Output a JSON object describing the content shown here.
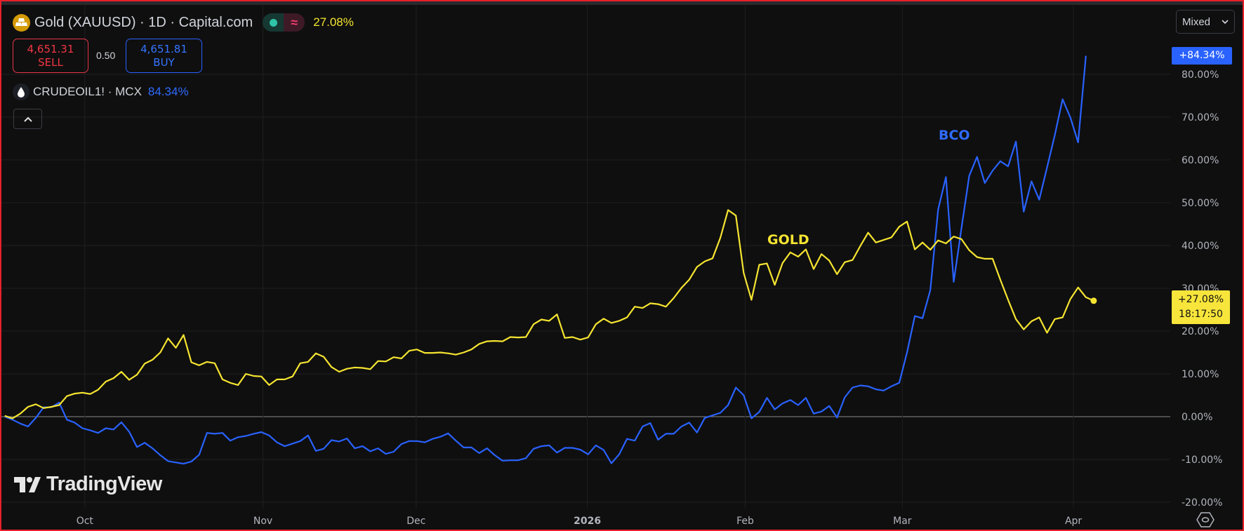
{
  "header": {
    "title": "Gold (XAUUSD) · 1D · Capital.com",
    "gold_change": "27.08%",
    "sell_price": "4,651.31",
    "sell_label": "SELL",
    "spread": "0.50",
    "buy_price": "4,651.81",
    "buy_label": "BUY",
    "compare_title": "CRUDEOIL1! · MCX",
    "compare_change": "84.34%",
    "icons": {
      "symbol": "gold-bars-icon",
      "compare": "oil-drop-icon",
      "collapse": "chevron-up-icon",
      "wave": "approx-wave-icon"
    }
  },
  "scale_mode": {
    "selected": "Mixed"
  },
  "price_tags": {
    "crude": "+84.34%",
    "gold": "+27.08%",
    "countdown": "18:17:50"
  },
  "logo": "TradingView",
  "colors": {
    "gold": "#f5e431",
    "crude": "#2962ff",
    "background": "#0f0f0f",
    "sell": "#f23645",
    "buy": "#2962ff"
  },
  "chart_data": {
    "type": "line",
    "interval": "1D",
    "y_unit": "% change",
    "ylim": [
      -20,
      85
    ],
    "y_ticks": [
      "80.00%",
      "70.00%",
      "60.00%",
      "50.00%",
      "40.00%",
      "30.00%",
      "20.00%",
      "10.00%",
      "0.00%",
      "-10.00%",
      "-20.00%"
    ],
    "y_tick_values": [
      80,
      70,
      60,
      50,
      40,
      30,
      20,
      10,
      0,
      -10,
      -20
    ],
    "x_ticks": [
      "Oct",
      "Nov",
      "Dec",
      "2026",
      "Feb",
      "Mar",
      "Apr"
    ],
    "grid": true,
    "annotations": [
      {
        "text": "GOLD",
        "series": "gold"
      },
      {
        "text": "BCO",
        "series": "crude"
      }
    ],
    "series": [
      {
        "name": "Gold (XAUUSD)",
        "key": "gold",
        "color": "#f5e431",
        "values": [
          0.2,
          -0.4,
          0.7,
          2.3,
          2.9,
          2.0,
          2.3,
          2.7,
          4.8,
          5.4,
          5.6,
          5.3,
          6.3,
          8.2,
          9.0,
          10.5,
          8.6,
          9.8,
          12.4,
          13.3,
          15.0,
          18.3,
          16.1,
          19.1,
          12.7,
          12.0,
          12.8,
          12.5,
          8.7,
          7.9,
          7.4,
          10.0,
          9.5,
          9.4,
          7.4,
          8.7,
          8.7,
          9.4,
          12.5,
          12.8,
          14.8,
          14.0,
          11.6,
          10.5,
          11.2,
          11.5,
          11.4,
          11.1,
          13.0,
          12.9,
          13.9,
          13.6,
          15.4,
          15.7,
          14.9,
          14.9,
          15.0,
          14.8,
          14.5,
          15.0,
          15.7,
          17.0,
          17.6,
          17.7,
          17.6,
          18.6,
          18.5,
          18.6,
          21.6,
          22.7,
          22.4,
          23.9,
          18.4,
          18.6,
          18.0,
          18.5,
          21.6,
          22.9,
          21.9,
          22.4,
          23.2,
          25.7,
          25.4,
          26.5,
          26.3,
          25.7,
          27.7,
          30.1,
          32.0,
          35.0,
          36.3,
          37.0,
          41.8,
          48.3,
          47.0,
          33.6,
          27.3,
          35.5,
          35.8,
          30.8,
          35.9,
          38.4,
          37.4,
          39.1,
          34.5,
          38.0,
          36.5,
          33.3,
          36.1,
          36.6,
          39.9,
          43.0,
          40.7,
          41.3,
          41.9,
          44.4,
          45.6,
          39.1,
          40.7,
          39.0,
          41.2,
          40.5,
          42.1,
          41.5,
          38.9,
          37.3,
          36.9,
          36.9,
          32.0,
          27.3,
          22.8,
          20.4,
          22.3,
          23.2,
          19.6,
          22.8,
          23.2,
          27.5,
          30.2,
          27.9,
          27.08
        ]
      },
      {
        "name": "CRUDEOIL1! · MCX",
        "key": "crude",
        "color": "#2962ff",
        "values": [
          0.0,
          -0.7,
          -1.6,
          -2.3,
          -0.3,
          2.2,
          2.2,
          3.3,
          -0.7,
          -1.4,
          -2.7,
          -3.2,
          -3.8,
          -2.7,
          -3.0,
          -1.3,
          -3.5,
          -7.1,
          -6.1,
          -7.4,
          -9.0,
          -10.4,
          -10.7,
          -11.0,
          -10.5,
          -8.9,
          -3.8,
          -4.0,
          -3.8,
          -5.6,
          -4.8,
          -4.5,
          -4.0,
          -3.6,
          -4.4,
          -6.0,
          -6.9,
          -6.3,
          -5.7,
          -4.4,
          -8.0,
          -7.5,
          -5.5,
          -5.8,
          -5.1,
          -7.4,
          -6.9,
          -8.1,
          -7.4,
          -8.7,
          -8.2,
          -6.4,
          -5.7,
          -5.7,
          -6.0,
          -5.2,
          -4.7,
          -3.9,
          -5.6,
          -7.2,
          -7.2,
          -8.5,
          -7.4,
          -9.0,
          -10.3,
          -10.2,
          -10.2,
          -9.7,
          -7.5,
          -6.9,
          -6.7,
          -8.4,
          -7.3,
          -7.3,
          -7.7,
          -8.8,
          -6.7,
          -7.8,
          -10.9,
          -8.8,
          -5.2,
          -5.6,
          -2.3,
          -1.5,
          -5.4,
          -4.0,
          -4.0,
          -2.3,
          -1.4,
          -3.7,
          -0.3,
          0.3,
          0.9,
          2.7,
          6.8,
          5.0,
          -0.4,
          1.1,
          4.4,
          1.7,
          3.1,
          3.9,
          2.7,
          4.4,
          0.7,
          1.2,
          2.5,
          -0.2,
          4.5,
          6.8,
          7.3,
          7.1,
          6.4,
          6.1,
          7.1,
          7.9,
          15.0,
          23.5,
          23.0,
          29.6,
          48.4,
          56.0,
          31.5,
          44.0,
          56.3,
          60.7,
          54.6,
          57.5,
          59.7,
          58.5,
          64.3,
          47.9,
          55.0,
          50.7,
          58.2,
          65.8,
          74.2,
          69.9,
          64.1,
          84.34
        ]
      }
    ]
  }
}
